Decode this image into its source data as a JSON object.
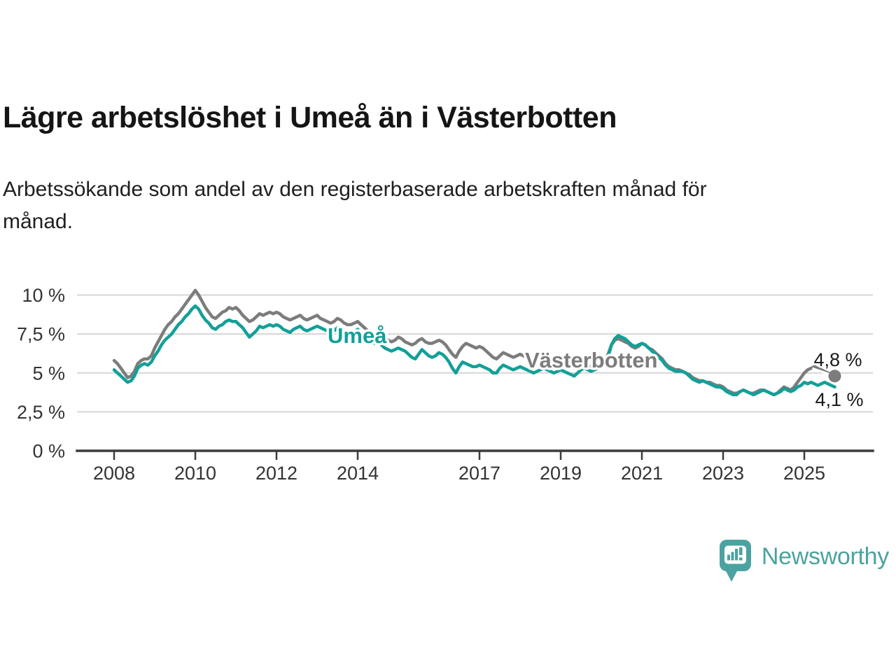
{
  "title": "Lägre arbetslöshet i Umeå än i Västerbotten",
  "subtitle_lines": [
    "Arbetssökande som andel av den registerbaserade arbetskraften månad för",
    "månad."
  ],
  "logo": {
    "text": "Newsworthy"
  },
  "colors": {
    "umea_teal": "#12a098",
    "vasterbotten_gray": "#7c7c7c",
    "logo_teal": "#4aa3a0",
    "grid": "#d6d6d6",
    "axis": "#3c3c3c",
    "tick_text": "#333333",
    "value_label_text": "#1a1a1a",
    "title_text": "#151515"
  },
  "chart_data": {
    "type": "line",
    "unit": "%",
    "title": "Lägre arbetslöshet i Umeå än i Västerbotten",
    "subtitle": "Arbetssökande som andel av den registerbaserade arbetskraften månad för månad.",
    "x_start_year": 2008,
    "x_resolution": "monthly",
    "x_end": "2025-10",
    "xlim": [
      2008,
      2026
    ],
    "ylim": [
      0,
      10.6
    ],
    "grid": "horizontal-only",
    "x_ticks": [
      2008,
      2010,
      2012,
      2014,
      2017,
      2019,
      2021,
      2023,
      2025
    ],
    "y_ticks": [
      {
        "value": 0,
        "label": "0 %"
      },
      {
        "value": 2.5,
        "label": "2,5 %"
      },
      {
        "value": 5,
        "label": "5 %"
      },
      {
        "value": 7.5,
        "label": "7,5 %"
      },
      {
        "value": 10,
        "label": "10 %"
      }
    ],
    "series": [
      {
        "name": "Umeå",
        "color": "#12a098",
        "end_label": "4,1 %",
        "end_dot": false,
        "values": [
          5.2,
          5.0,
          4.8,
          4.6,
          4.4,
          4.5,
          4.8,
          5.3,
          5.5,
          5.6,
          5.5,
          5.7,
          6.1,
          6.4,
          6.8,
          7.1,
          7.3,
          7.5,
          7.8,
          8.1,
          8.3,
          8.6,
          8.8,
          9.1,
          9.3,
          9.1,
          8.7,
          8.4,
          8.2,
          7.9,
          7.8,
          8.0,
          8.1,
          8.3,
          8.4,
          8.3,
          8.3,
          8.1,
          7.9,
          7.6,
          7.3,
          7.5,
          7.7,
          8.0,
          7.9,
          8.0,
          8.1,
          8.0,
          8.1,
          8.0,
          7.8,
          7.7,
          7.6,
          7.8,
          7.9,
          8.0,
          7.8,
          7.7,
          7.8,
          7.9,
          8.0,
          7.9,
          7.8,
          7.7,
          7.6,
          7.7,
          7.9,
          7.8,
          7.6,
          7.5,
          7.5,
          7.6,
          7.8,
          7.6,
          7.4,
          7.2,
          7.0,
          6.9,
          7.0,
          6.8,
          6.6,
          6.5,
          6.4,
          6.5,
          6.6,
          6.5,
          6.4,
          6.2,
          6.0,
          5.9,
          6.2,
          6.5,
          6.3,
          6.1,
          6.0,
          6.1,
          6.3,
          6.2,
          6.0,
          5.7,
          5.3,
          5.0,
          5.4,
          5.7,
          5.6,
          5.5,
          5.4,
          5.4,
          5.5,
          5.4,
          5.3,
          5.2,
          5.0,
          5.0,
          5.3,
          5.5,
          5.4,
          5.3,
          5.2,
          5.3,
          5.4,
          5.3,
          5.2,
          5.1,
          5.0,
          5.1,
          5.2,
          5.3,
          5.2,
          5.1,
          5.0,
          5.1,
          5.2,
          5.1,
          5.0,
          4.9,
          4.8,
          5.0,
          5.2,
          5.3,
          5.2,
          5.1,
          5.2,
          5.3,
          5.4,
          5.5,
          6.0,
          6.8,
          7.2,
          7.4,
          7.3,
          7.2,
          7.0,
          6.8,
          6.7,
          6.8,
          6.9,
          6.8,
          6.6,
          6.4,
          6.2,
          6.0,
          5.8,
          5.5,
          5.3,
          5.2,
          5.1,
          5.1,
          5.1,
          5.0,
          4.8,
          4.6,
          4.5,
          4.4,
          4.5,
          4.4,
          4.3,
          4.2,
          4.1,
          4.1,
          4.0,
          3.8,
          3.7,
          3.6,
          3.6,
          3.8,
          3.9,
          3.8,
          3.7,
          3.6,
          3.7,
          3.8,
          3.9,
          3.8,
          3.7,
          3.6,
          3.7,
          3.8,
          4.0,
          3.9,
          3.8,
          3.9,
          4.1,
          4.2,
          4.4,
          4.3,
          4.4,
          4.3,
          4.2,
          4.3,
          4.4,
          4.3,
          4.2,
          4.1
        ]
      },
      {
        "name": "Västerbotten",
        "color": "#7c7c7c",
        "end_label": "4,8 %",
        "end_dot": true,
        "values": [
          5.8,
          5.6,
          5.3,
          5.0,
          4.7,
          4.8,
          5.1,
          5.6,
          5.8,
          5.9,
          5.9,
          6.1,
          6.6,
          7.0,
          7.4,
          7.8,
          8.1,
          8.3,
          8.6,
          8.8,
          9.1,
          9.4,
          9.7,
          10.0,
          10.3,
          10.0,
          9.6,
          9.2,
          8.9,
          8.6,
          8.5,
          8.7,
          8.9,
          9.0,
          9.2,
          9.1,
          9.2,
          9.0,
          8.7,
          8.5,
          8.3,
          8.4,
          8.6,
          8.8,
          8.7,
          8.8,
          8.9,
          8.8,
          8.9,
          8.8,
          8.6,
          8.5,
          8.4,
          8.5,
          8.6,
          8.7,
          8.5,
          8.4,
          8.5,
          8.6,
          8.7,
          8.5,
          8.4,
          8.3,
          8.2,
          8.3,
          8.5,
          8.4,
          8.2,
          8.1,
          8.1,
          8.2,
          8.3,
          8.1,
          7.9,
          7.7,
          7.5,
          7.4,
          7.6,
          7.4,
          7.2,
          7.1,
          7.0,
          7.1,
          7.3,
          7.2,
          7.0,
          6.9,
          6.8,
          6.9,
          7.1,
          7.2,
          7.0,
          6.9,
          6.9,
          7.0,
          7.1,
          7.0,
          6.8,
          6.5,
          6.2,
          6.0,
          6.4,
          6.7,
          6.9,
          6.8,
          6.7,
          6.6,
          6.7,
          6.6,
          6.4,
          6.2,
          6.0,
          5.9,
          6.1,
          6.3,
          6.2,
          6.1,
          6.0,
          6.1,
          6.2,
          6.1,
          6.0,
          5.9,
          5.8,
          5.9,
          6.0,
          6.0,
          5.9,
          5.8,
          5.7,
          5.8,
          5.9,
          5.8,
          5.7,
          5.6,
          5.5,
          5.6,
          5.7,
          5.6,
          5.5,
          5.4,
          5.5,
          5.6,
          5.7,
          5.8,
          6.2,
          6.8,
          7.1,
          7.2,
          7.1,
          7.0,
          6.9,
          6.7,
          6.6,
          6.7,
          6.9,
          6.8,
          6.6,
          6.5,
          6.3,
          6.1,
          5.9,
          5.6,
          5.4,
          5.3,
          5.2,
          5.2,
          5.1,
          5.0,
          4.9,
          4.7,
          4.6,
          4.5,
          4.5,
          4.4,
          4.4,
          4.3,
          4.2,
          4.2,
          4.1,
          3.9,
          3.8,
          3.7,
          3.7,
          3.8,
          3.9,
          3.8,
          3.7,
          3.7,
          3.8,
          3.9,
          3.9,
          3.8,
          3.7,
          3.6,
          3.7,
          3.9,
          4.1,
          4.0,
          3.9,
          4.1,
          4.4,
          4.7,
          5.0,
          5.2,
          5.3,
          5.4,
          5.3,
          5.2,
          5.1,
          5.0,
          4.9,
          4.8
        ]
      }
    ]
  }
}
